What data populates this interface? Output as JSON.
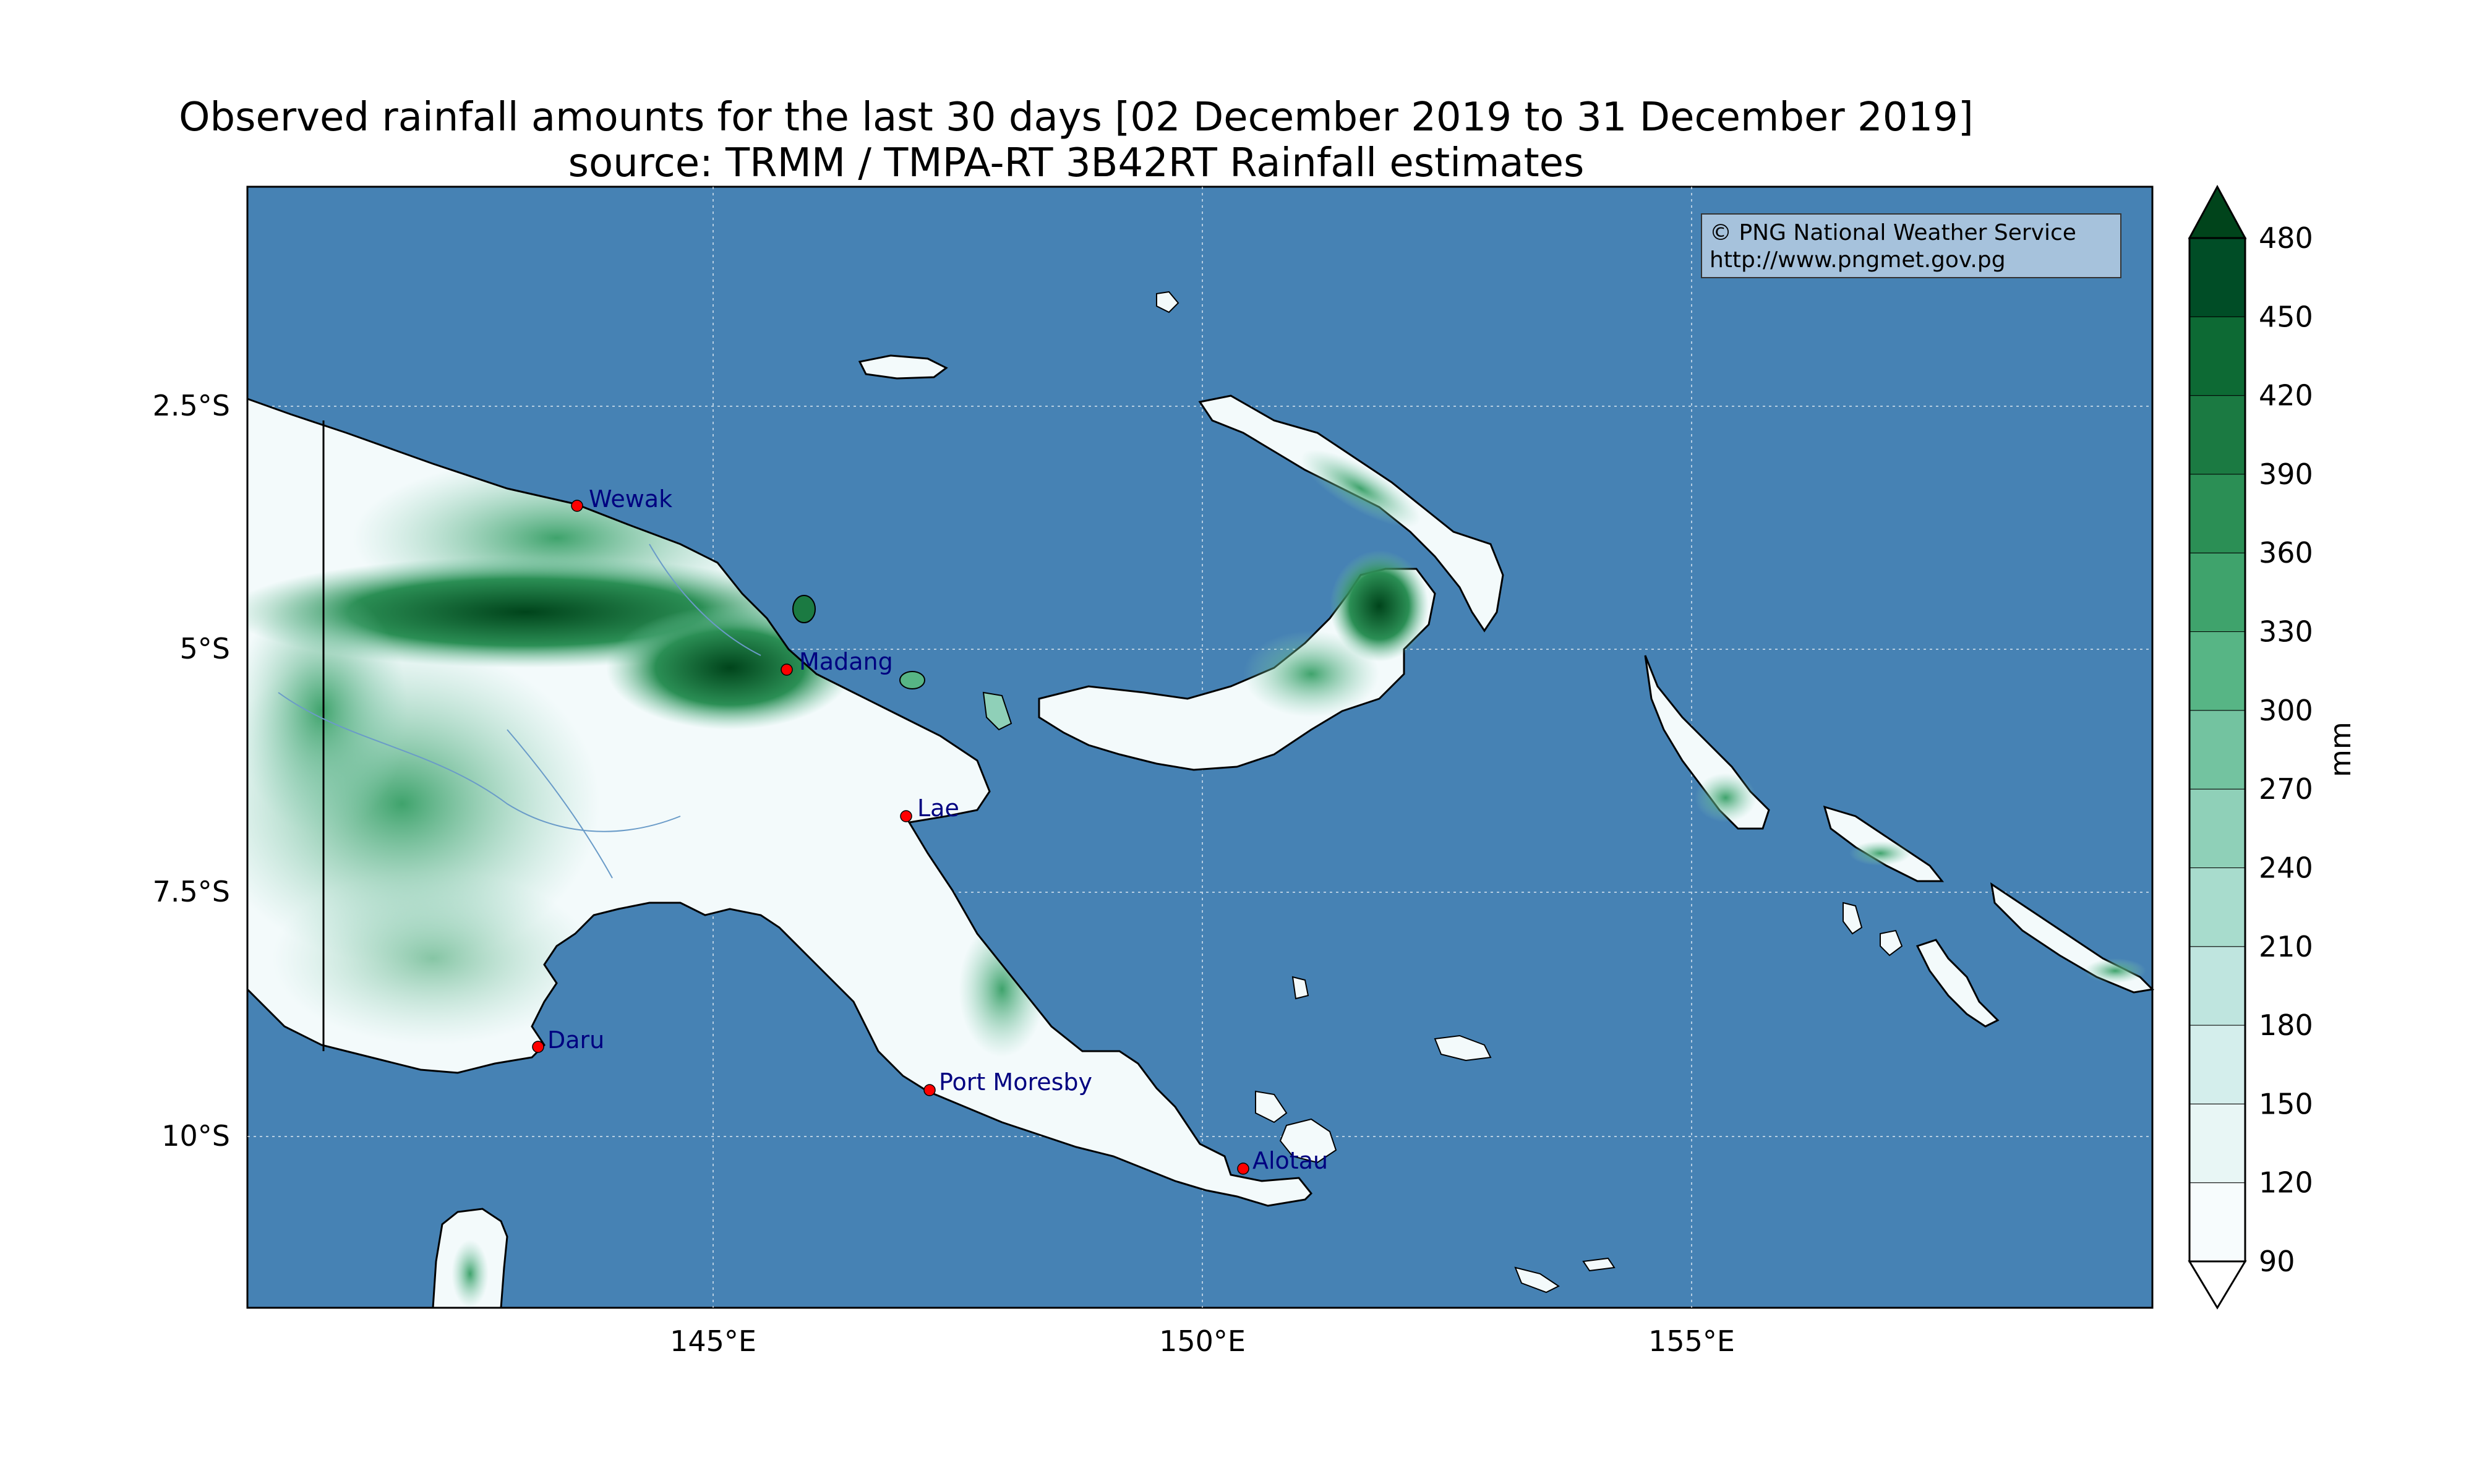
{
  "title": {
    "line1": "Observed rainfall amounts for the last 30 days [02 December 2019 to 31 December 2019]",
    "line2": "source: TRMM / TMPA-RT 3B42RT Rainfall estimates"
  },
  "credit": {
    "line1": "© PNG National Weather Service",
    "line2": "http://www.pngmet.gov.pg"
  },
  "axes": {
    "x_ticks": [
      "145°E",
      "150°E",
      "155°E"
    ],
    "y_ticks": [
      "2.5°S",
      "5°S",
      "7.5°S",
      "10°S"
    ]
  },
  "cities": [
    {
      "name": "Wewak"
    },
    {
      "name": "Madang"
    },
    {
      "name": "Lae"
    },
    {
      "name": "Daru"
    },
    {
      "name": "Port Moresby"
    },
    {
      "name": "Alotau"
    }
  ],
  "colorbar": {
    "unit": "mm",
    "levels": [
      "90",
      "120",
      "150",
      "180",
      "210",
      "240",
      "270",
      "300",
      "330",
      "360",
      "390",
      "420",
      "450",
      "480"
    ],
    "colors": [
      "#f7fcfd",
      "#e8f6f5",
      "#d4eeec",
      "#bfe5df",
      "#a8dccd",
      "#8fd0b8",
      "#73c3a0",
      "#57b585",
      "#3fa36c",
      "#2b8f55",
      "#1b7a42",
      "#0d6a34",
      "#004d26"
    ],
    "under_color": "#ffffff",
    "over_color": "#00441b"
  },
  "colors": {
    "ocean": "#4682b4",
    "land_dry": "#f3fafb",
    "land_wet": "#00441b",
    "city_marker": "#ff0000"
  }
}
